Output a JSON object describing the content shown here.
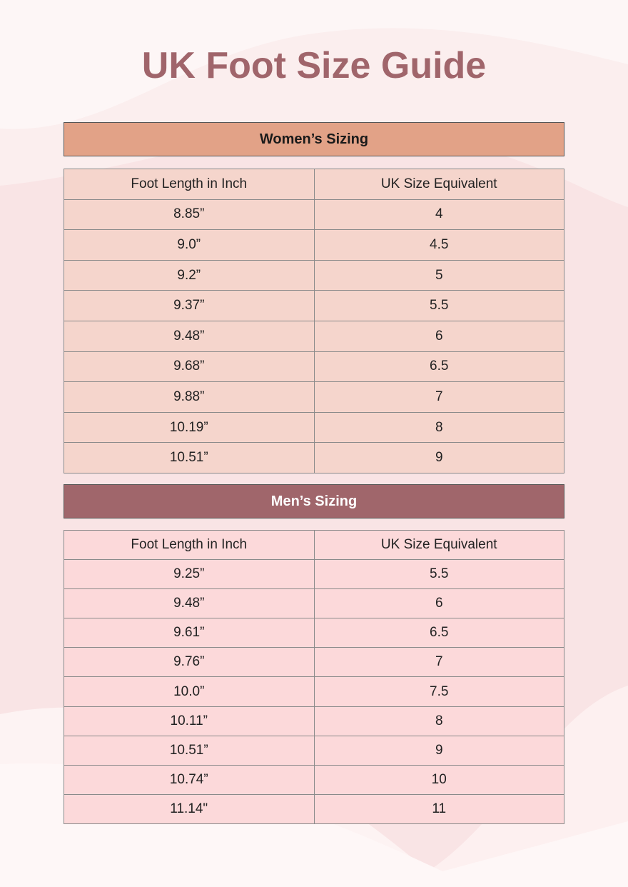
{
  "title": "UK Foot Size Guide",
  "colors": {
    "title": "#a0656b",
    "women_band": "#e2a287",
    "men_band": "#a0666b",
    "women_rows": "#f5d5cc",
    "men_rows": "#fcd9da"
  },
  "women": {
    "heading": "Women’s Sizing",
    "columns": [
      "Foot Length in Inch",
      "UK Size Equivalent"
    ],
    "rows": [
      [
        "8.85”",
        "4"
      ],
      [
        "9.0”",
        "4.5"
      ],
      [
        "9.2”",
        "5"
      ],
      [
        "9.37”",
        "5.5"
      ],
      [
        "9.48”",
        "6"
      ],
      [
        "9.68”",
        "6.5"
      ],
      [
        "9.88”",
        "7"
      ],
      [
        "10.19”",
        "8"
      ],
      [
        "10.51”",
        "9"
      ]
    ]
  },
  "men": {
    "heading": "Men’s Sizing",
    "columns": [
      "Foot Length in Inch",
      "UK Size Equivalent"
    ],
    "rows": [
      [
        "9.25”",
        "5.5"
      ],
      [
        "9.48”",
        "6"
      ],
      [
        "9.61”",
        "6.5"
      ],
      [
        "9.76”",
        "7"
      ],
      [
        "10.0”",
        "7.5"
      ],
      [
        "10.11”",
        "8"
      ],
      [
        "10.51”",
        "9"
      ],
      [
        "10.74”",
        "10"
      ],
      [
        "11.14\"",
        "11"
      ]
    ]
  }
}
